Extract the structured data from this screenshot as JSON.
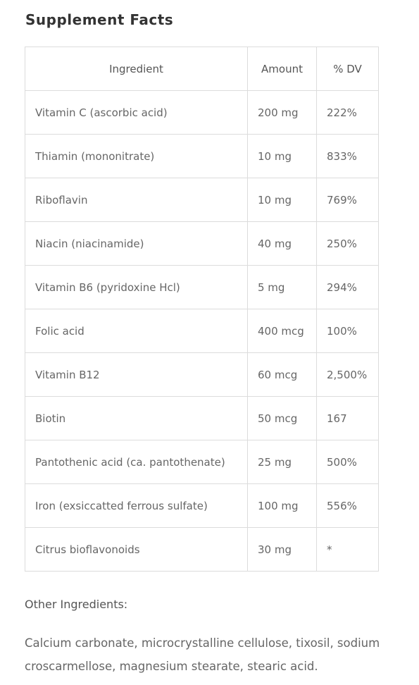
{
  "title": "Supplement Facts",
  "table": {
    "headers": [
      "Ingredient",
      "Amount",
      "% DV"
    ],
    "rows": [
      [
        "Vitamin C (ascorbic acid)",
        "200 mg",
        "222%"
      ],
      [
        "Thiamin (mononitrate)",
        "10 mg",
        "833%"
      ],
      [
        "Riboflavin",
        "10 mg",
        "769%"
      ],
      [
        "Niacin (niacinamide)",
        "40 mg",
        "250%"
      ],
      [
        "Vitamin B6 (pyridoxine Hcl)",
        "5 mg",
        "294%"
      ],
      [
        "Folic acid",
        "400 mcg",
        "100%"
      ],
      [
        "Vitamin B12",
        "60 mcg",
        "2,500%"
      ],
      [
        "Biotin",
        "50 mcg",
        "167"
      ],
      [
        "Pantothenic acid (ca. pantothenate)",
        "25 mg",
        "500%"
      ],
      [
        "Iron (exsiccatted ferrous sulfate)",
        "100 mg",
        "556%"
      ],
      [
        "Citrus bioflavonoids",
        "30 mg",
        "*"
      ]
    ]
  },
  "other_ingredients": {
    "heading": "Other Ingredients:",
    "text": "Calcium carbonate, microcrystalline cellulose, tixosil, sodium croscarmellose, magnesium stearate, stearic acid."
  }
}
